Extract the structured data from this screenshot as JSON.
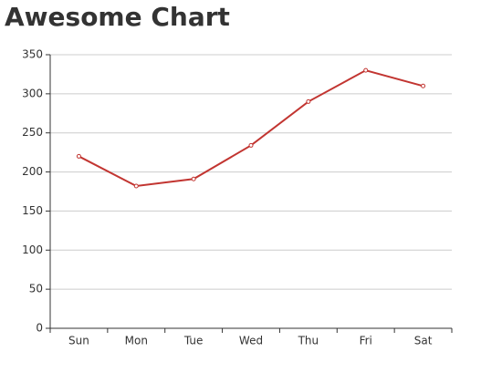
{
  "chart_data": {
    "type": "line",
    "title": "Awesome Chart",
    "categories": [
      "Sun",
      "Mon",
      "Tue",
      "Wed",
      "Thu",
      "Fri",
      "Sat"
    ],
    "series": [
      {
        "color": "#c23531",
        "values": [
          220,
          182,
          191,
          234,
          290,
          330,
          310
        ]
      }
    ],
    "ylim": [
      0,
      350
    ],
    "yticks": [
      0,
      50,
      100,
      150,
      200,
      250,
      300,
      350
    ],
    "grid": true
  }
}
